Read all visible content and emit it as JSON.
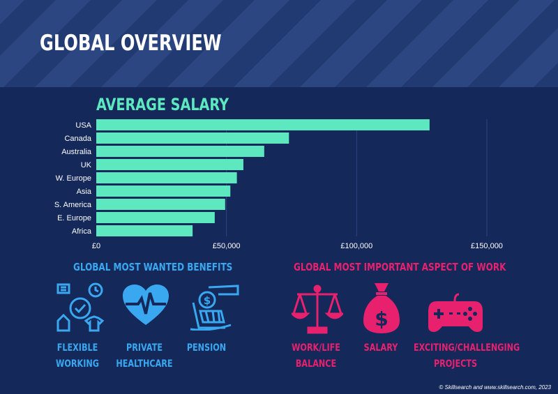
{
  "page": {
    "title": "GLOBAL OVERVIEW"
  },
  "chart_data": {
    "type": "bar",
    "orientation": "horizontal",
    "title": "AVERAGE SALARY",
    "categories": [
      "USA",
      "Canada",
      "Australia",
      "UK",
      "W. Europe",
      "Asia",
      "S. America",
      "E. Europe",
      "Africa"
    ],
    "values": [
      128000,
      74000,
      64500,
      56500,
      54000,
      51500,
      49500,
      45500,
      37000
    ],
    "tick_values": [
      0,
      50000,
      100000,
      150000
    ],
    "tick_labels": [
      "£0",
      "£50,000",
      "£100,000",
      "£150,000"
    ],
    "xlim": [
      0,
      150000
    ],
    "grid": true,
    "bar_color": "#5ee8c0"
  },
  "benefits": {
    "title": "GLOBAL MOST WANTED BENEFITS",
    "items": [
      {
        "icon": "flexible-working-icon",
        "line1": "FLEXIBLE",
        "line2": "WORKING"
      },
      {
        "icon": "heart-pulse-icon",
        "line1": "PRIVATE",
        "line2": "HEALTHCARE"
      },
      {
        "icon": "pension-icon",
        "line1": "PENSION",
        "line2": ""
      }
    ]
  },
  "aspects": {
    "title": "GLOBAL MOST IMPORTANT ASPECT OF WORK",
    "items": [
      {
        "icon": "scales-icon",
        "line1": "WORK/LIFE",
        "line2": "BALANCE"
      },
      {
        "icon": "money-bag-icon",
        "line1": "SALARY",
        "line2": ""
      },
      {
        "icon": "game-controller-icon",
        "line1": "EXCITING/CHALLENGING",
        "line2": "PROJECTS"
      }
    ]
  },
  "footer": {
    "text": "© Skillsearch and www.skillsearch.com, 2023"
  },
  "colors": {
    "background": "#14285a",
    "header": "#223a72",
    "accent_teal": "#5ee8c0",
    "blue": "#3aa8f0",
    "pink": "#e8216e"
  }
}
